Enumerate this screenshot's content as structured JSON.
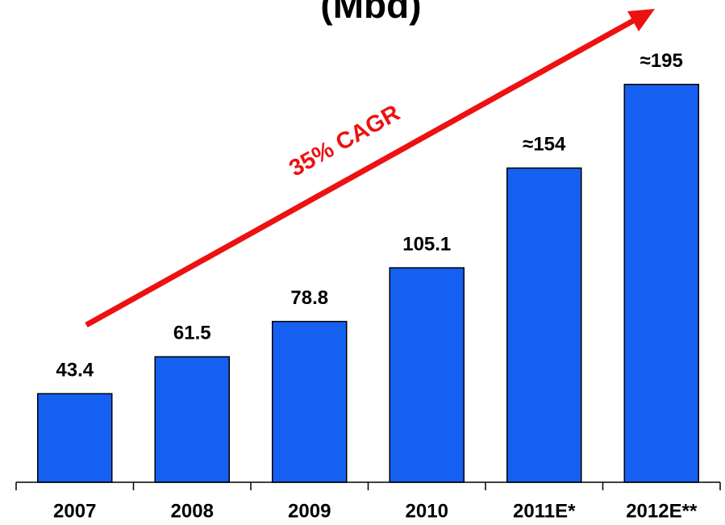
{
  "chart_data": {
    "type": "bar",
    "title": "(Mbd)",
    "categories": [
      "2007",
      "2008",
      "2009",
      "2010",
      "2011E*",
      "2012E**"
    ],
    "values": [
      43.4,
      61.5,
      78.8,
      105.1,
      154,
      195
    ],
    "value_labels": [
      "43.4",
      "61.5",
      "78.8",
      "105.1",
      "≈154",
      "≈195"
    ],
    "color": "#1560f0",
    "annotation": "35% CAGR",
    "annotation_color": "#ee1111"
  }
}
